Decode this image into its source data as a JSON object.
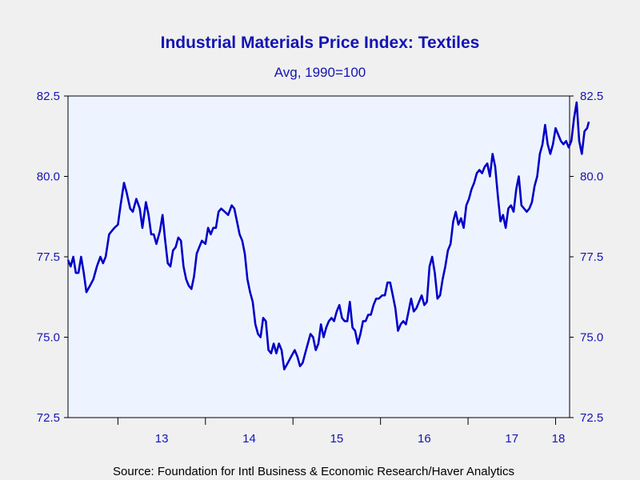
{
  "chart_data": {
    "type": "line",
    "title": "Industrial Materials Price Index: Textiles",
    "subtitle": "Avg, 1990=100",
    "source": "Source:  Foundation for Intl Business & Economic Research/Haver Analytics",
    "xlabel": "",
    "ylabel": "",
    "ylim": [
      72.5,
      82.5
    ],
    "yticks": [
      "72.5",
      "75.0",
      "77.5",
      "80.0",
      "82.5"
    ],
    "xlim": [
      2012.43,
      2018.16
    ],
    "x_tick_labels": [
      "13",
      "14",
      "15",
      "16",
      "17",
      "18"
    ],
    "grid": false,
    "line_color": "#0000c8",
    "plot_background": "#eef4ff",
    "series": [
      {
        "values": [
          [
            2012.43,
            77.4
          ],
          [
            2012.46,
            77.2
          ],
          [
            2012.49,
            77.5
          ],
          [
            2012.52,
            77.0
          ],
          [
            2012.55,
            77.0
          ],
          [
            2012.58,
            77.5
          ],
          [
            2012.61,
            77.0
          ],
          [
            2012.64,
            76.4
          ],
          [
            2012.68,
            76.6
          ],
          [
            2012.72,
            76.8
          ],
          [
            2012.76,
            77.2
          ],
          [
            2012.8,
            77.5
          ],
          [
            2012.83,
            77.3
          ],
          [
            2012.86,
            77.5
          ],
          [
            2012.9,
            78.2
          ],
          [
            2012.93,
            78.3
          ],
          [
            2012.96,
            78.4
          ],
          [
            2013.0,
            78.5
          ],
          [
            2013.03,
            79.1
          ],
          [
            2013.07,
            79.8
          ],
          [
            2013.1,
            79.5
          ],
          [
            2013.14,
            79.0
          ],
          [
            2013.17,
            78.9
          ],
          [
            2013.21,
            79.3
          ],
          [
            2013.25,
            79.0
          ],
          [
            2013.28,
            78.4
          ],
          [
            2013.32,
            79.2
          ],
          [
            2013.35,
            78.8
          ],
          [
            2013.38,
            78.2
          ],
          [
            2013.41,
            78.2
          ],
          [
            2013.44,
            77.9
          ],
          [
            2013.48,
            78.3
          ],
          [
            2013.51,
            78.8
          ],
          [
            2013.54,
            78.0
          ],
          [
            2013.57,
            77.3
          ],
          [
            2013.6,
            77.2
          ],
          [
            2013.63,
            77.7
          ],
          [
            2013.66,
            77.8
          ],
          [
            2013.69,
            78.1
          ],
          [
            2013.72,
            78.0
          ],
          [
            2013.75,
            77.2
          ],
          [
            2013.78,
            76.8
          ],
          [
            2013.81,
            76.6
          ],
          [
            2013.84,
            76.5
          ],
          [
            2013.87,
            76.9
          ],
          [
            2013.9,
            77.6
          ],
          [
            2013.93,
            77.8
          ],
          [
            2013.96,
            78.0
          ],
          [
            2014.0,
            77.9
          ],
          [
            2014.03,
            78.4
          ],
          [
            2014.06,
            78.2
          ],
          [
            2014.09,
            78.4
          ],
          [
            2014.12,
            78.4
          ],
          [
            2014.15,
            78.9
          ],
          [
            2014.18,
            79.0
          ],
          [
            2014.22,
            78.9
          ],
          [
            2014.26,
            78.8
          ],
          [
            2014.3,
            79.1
          ],
          [
            2014.33,
            79.0
          ],
          [
            2014.36,
            78.6
          ],
          [
            2014.39,
            78.2
          ],
          [
            2014.42,
            78.0
          ],
          [
            2014.45,
            77.6
          ],
          [
            2014.48,
            76.8
          ],
          [
            2014.51,
            76.4
          ],
          [
            2014.54,
            76.1
          ],
          [
            2014.57,
            75.4
          ],
          [
            2014.6,
            75.1
          ],
          [
            2014.63,
            75.0
          ],
          [
            2014.66,
            75.6
          ],
          [
            2014.69,
            75.5
          ],
          [
            2014.72,
            74.6
          ],
          [
            2014.75,
            74.5
          ],
          [
            2014.78,
            74.8
          ],
          [
            2014.81,
            74.5
          ],
          [
            2014.84,
            74.8
          ],
          [
            2014.87,
            74.6
          ],
          [
            2014.9,
            74.0
          ],
          [
            2014.94,
            74.2
          ],
          [
            2014.98,
            74.4
          ],
          [
            2015.02,
            74.6
          ],
          [
            2015.05,
            74.4
          ],
          [
            2015.08,
            74.1
          ],
          [
            2015.11,
            74.2
          ],
          [
            2015.14,
            74.5
          ],
          [
            2015.17,
            74.8
          ],
          [
            2015.2,
            75.1
          ],
          [
            2015.23,
            75.0
          ],
          [
            2015.26,
            74.6
          ],
          [
            2015.29,
            74.8
          ],
          [
            2015.32,
            75.4
          ],
          [
            2015.35,
            75.0
          ],
          [
            2015.38,
            75.3
          ],
          [
            2015.41,
            75.5
          ],
          [
            2015.44,
            75.6
          ],
          [
            2015.47,
            75.5
          ],
          [
            2015.5,
            75.8
          ],
          [
            2015.53,
            76.0
          ],
          [
            2015.56,
            75.6
          ],
          [
            2015.59,
            75.5
          ],
          [
            2015.62,
            75.5
          ],
          [
            2015.65,
            76.1
          ],
          [
            2015.68,
            75.3
          ],
          [
            2015.71,
            75.2
          ],
          [
            2015.74,
            74.8
          ],
          [
            2015.77,
            75.1
          ],
          [
            2015.8,
            75.5
          ],
          [
            2015.83,
            75.5
          ],
          [
            2015.86,
            75.7
          ],
          [
            2015.89,
            75.7
          ],
          [
            2015.92,
            76.0
          ],
          [
            2015.95,
            76.2
          ],
          [
            2015.98,
            76.2
          ],
          [
            2016.02,
            76.3
          ],
          [
            2016.05,
            76.3
          ],
          [
            2016.08,
            76.7
          ],
          [
            2016.11,
            76.7
          ],
          [
            2016.14,
            76.3
          ],
          [
            2016.17,
            75.9
          ],
          [
            2016.2,
            75.2
          ],
          [
            2016.23,
            75.4
          ],
          [
            2016.26,
            75.5
          ],
          [
            2016.29,
            75.4
          ],
          [
            2016.32,
            75.8
          ],
          [
            2016.35,
            76.2
          ],
          [
            2016.38,
            75.8
          ],
          [
            2016.41,
            75.9
          ],
          [
            2016.44,
            76.1
          ],
          [
            2016.47,
            76.3
          ],
          [
            2016.5,
            76.0
          ],
          [
            2016.53,
            76.1
          ],
          [
            2016.56,
            77.2
          ],
          [
            2016.59,
            77.5
          ],
          [
            2016.62,
            77.0
          ],
          [
            2016.65,
            76.2
          ],
          [
            2016.68,
            76.3
          ],
          [
            2016.71,
            76.8
          ],
          [
            2016.74,
            77.2
          ],
          [
            2016.77,
            77.7
          ],
          [
            2016.8,
            77.9
          ],
          [
            2016.83,
            78.6
          ],
          [
            2016.86,
            78.9
          ],
          [
            2016.89,
            78.5
          ],
          [
            2016.92,
            78.7
          ],
          [
            2016.95,
            78.4
          ],
          [
            2016.98,
            79.1
          ],
          [
            2017.01,
            79.3
          ],
          [
            2017.04,
            79.6
          ],
          [
            2017.07,
            79.8
          ],
          [
            2017.1,
            80.1
          ],
          [
            2017.13,
            80.2
          ],
          [
            2017.16,
            80.1
          ],
          [
            2017.19,
            80.3
          ],
          [
            2017.22,
            80.4
          ],
          [
            2017.25,
            80.0
          ],
          [
            2017.28,
            80.7
          ],
          [
            2017.31,
            80.3
          ],
          [
            2017.34,
            79.4
          ],
          [
            2017.37,
            78.6
          ],
          [
            2017.4,
            78.8
          ],
          [
            2017.43,
            78.4
          ],
          [
            2017.46,
            79.0
          ],
          [
            2017.49,
            79.1
          ],
          [
            2017.52,
            78.9
          ],
          [
            2017.55,
            79.6
          ],
          [
            2017.58,
            80.0
          ],
          [
            2017.61,
            79.1
          ],
          [
            2017.64,
            79.0
          ],
          [
            2017.67,
            78.9
          ],
          [
            2017.7,
            79.0
          ],
          [
            2017.73,
            79.2
          ],
          [
            2017.76,
            79.7
          ],
          [
            2017.79,
            80.0
          ],
          [
            2017.82,
            80.7
          ],
          [
            2017.85,
            81.0
          ],
          [
            2017.88,
            81.6
          ],
          [
            2017.91,
            81.0
          ],
          [
            2017.94,
            80.7
          ],
          [
            2017.97,
            81.0
          ],
          [
            2018.0,
            81.5
          ],
          [
            2018.03,
            81.3
          ],
          [
            2018.06,
            81.1
          ],
          [
            2018.09,
            81.0
          ],
          [
            2018.12,
            81.1
          ],
          [
            2018.15,
            80.9
          ],
          [
            2018.18,
            81.1
          ],
          [
            2018.21,
            81.8
          ],
          [
            2018.24,
            82.3
          ],
          [
            2018.27,
            81.1
          ],
          [
            2018.3,
            80.7
          ],
          [
            2018.33,
            81.4
          ],
          [
            2018.36,
            81.5
          ],
          [
            2018.38,
            81.7
          ]
        ]
      }
    ]
  }
}
